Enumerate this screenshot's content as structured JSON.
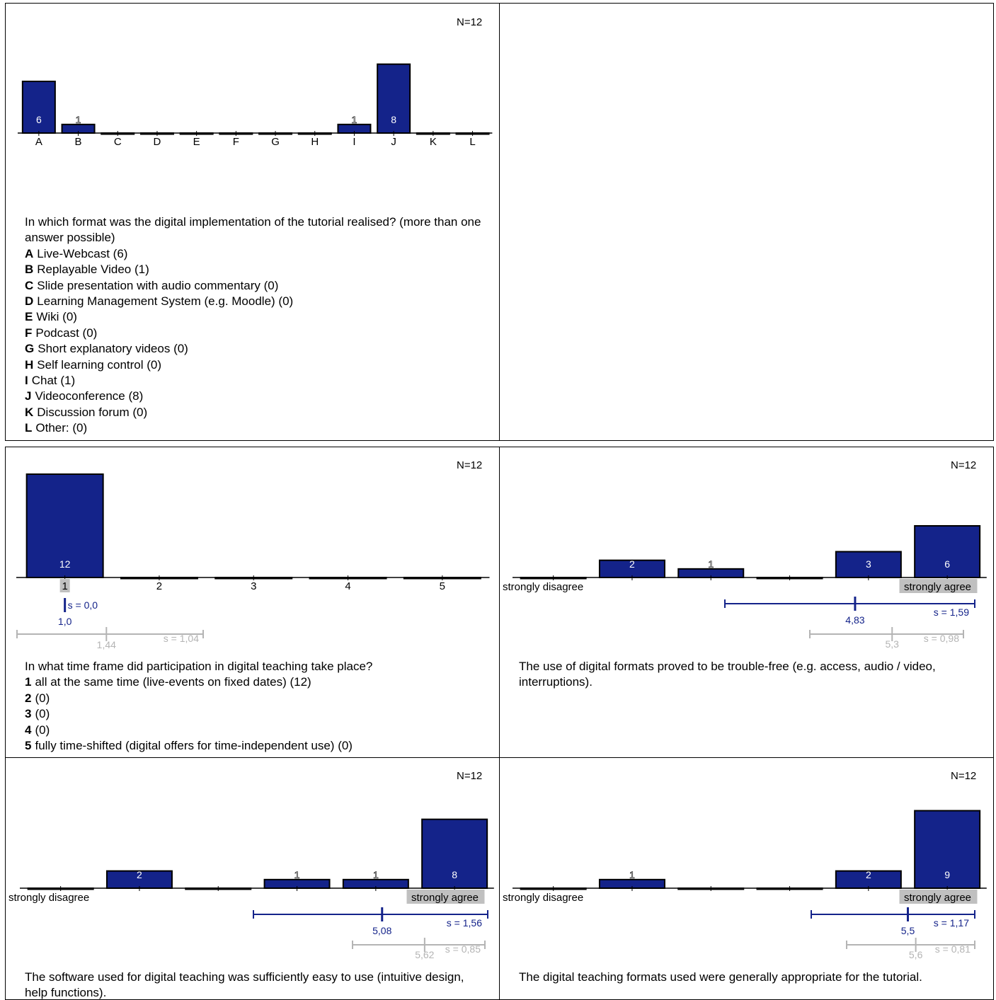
{
  "colors": {
    "bar": "#14238a",
    "mean": "#14238a",
    "compare": "#b4b4b4",
    "highlight": "#c0c0c0"
  },
  "panels": [
    {
      "id": "format",
      "n_label": "N=12",
      "question": "In which format was the digital implementation of the tutorial realised? (more than one answer possible)",
      "options": [
        {
          "key": "A",
          "text": "Live-Webcast (6)"
        },
        {
          "key": "B",
          "text": "Replayable Video (1)"
        },
        {
          "key": "C",
          "text": "Slide presentation with audio commentary (0)"
        },
        {
          "key": "D",
          "text": "Learning Management System (e.g. Moodle) (0)"
        },
        {
          "key": "E",
          "text": "Wiki (0)"
        },
        {
          "key": "F",
          "text": "Podcast (0)"
        },
        {
          "key": "G",
          "text": "Short explanatory videos (0)"
        },
        {
          "key": "H",
          "text": "Self learning control (0)"
        },
        {
          "key": "I",
          "text": "Chat (1)"
        },
        {
          "key": "J",
          "text": "Videoconference (8)"
        },
        {
          "key": "K",
          "text": "Discussion forum (0)"
        },
        {
          "key": "L",
          "text": "Other: (0)"
        }
      ]
    },
    {
      "id": "timeframe",
      "n_label": "N=12",
      "question": "In what time frame did participation in digital teaching take place?",
      "options": [
        {
          "key": "1",
          "text": "all at the same time (live-events on fixed dates) (12)"
        },
        {
          "key": "2",
          "text": "(0)"
        },
        {
          "key": "3",
          "text": "(0)"
        },
        {
          "key": "4",
          "text": "(0)"
        },
        {
          "key": "5",
          "text": "fully time-shifted (digital offers for time-independent use) (0)"
        }
      ]
    },
    {
      "id": "troublefree",
      "n_label": "N=12",
      "question": "The use of digital formats proved to be trouble-free (e.g. access, audio / video, interruptions).",
      "options": []
    },
    {
      "id": "software",
      "n_label": "N=12",
      "question": "The software used for digital teaching was sufficiently easy to use (intuitive design, help functions).",
      "options": []
    },
    {
      "id": "appropriate",
      "n_label": "N=12",
      "question": "The digital teaching formats used were generally appropriate for the tutorial.",
      "options": []
    }
  ],
  "chart_data": [
    {
      "type": "bar",
      "categories": [
        "A",
        "B",
        "C",
        "D",
        "E",
        "F",
        "G",
        "H",
        "I",
        "J",
        "K",
        "L"
      ],
      "values": [
        6,
        1,
        0,
        0,
        0,
        0,
        0,
        0,
        1,
        8,
        0,
        0
      ],
      "n": 12
    },
    {
      "type": "bar",
      "categories": [
        "1",
        "2",
        "3",
        "4",
        "5"
      ],
      "values": [
        12,
        0,
        0,
        0,
        0
      ],
      "n": 12,
      "mean": {
        "value": 1.0,
        "value_label": "1,0",
        "s_label": "s = 0,0"
      },
      "comparison": {
        "value": 1.44,
        "value_label": "1,44",
        "s_label": "s = 1,04"
      }
    },
    {
      "type": "bar",
      "categories": [
        "1",
        "2",
        "3",
        "4",
        "5",
        "6"
      ],
      "values": [
        0,
        2,
        1,
        0,
        3,
        6
      ],
      "n": 12,
      "left_label": "strongly disagree",
      "right_label": "strongly agree",
      "mean": {
        "value": 4.83,
        "value_label": "4,83",
        "s_label": "s = 1,59"
      },
      "comparison": {
        "value": 5.3,
        "value_label": "5,3",
        "s_label": "s = 0,98"
      }
    },
    {
      "type": "bar",
      "categories": [
        "1",
        "2",
        "3",
        "4",
        "5",
        "6"
      ],
      "values": [
        0,
        2,
        0,
        1,
        1,
        8
      ],
      "n": 12,
      "left_label": "strongly disagree",
      "right_label": "strongly agree",
      "mean": {
        "value": 5.08,
        "value_label": "5,08",
        "s_label": "s = 1,56"
      },
      "comparison": {
        "value": 5.62,
        "value_label": "5,62",
        "s_label": "s = 0,85"
      }
    },
    {
      "type": "bar",
      "categories": [
        "1",
        "2",
        "3",
        "4",
        "5",
        "6"
      ],
      "values": [
        0,
        1,
        0,
        0,
        2,
        9
      ],
      "n": 12,
      "left_label": "strongly disagree",
      "right_label": "strongly agree",
      "mean": {
        "value": 5.5,
        "value_label": "5,5",
        "s_label": "s = 1,17"
      },
      "comparison": {
        "value": 5.6,
        "value_label": "5,6",
        "s_label": "s = 0,81"
      }
    }
  ]
}
